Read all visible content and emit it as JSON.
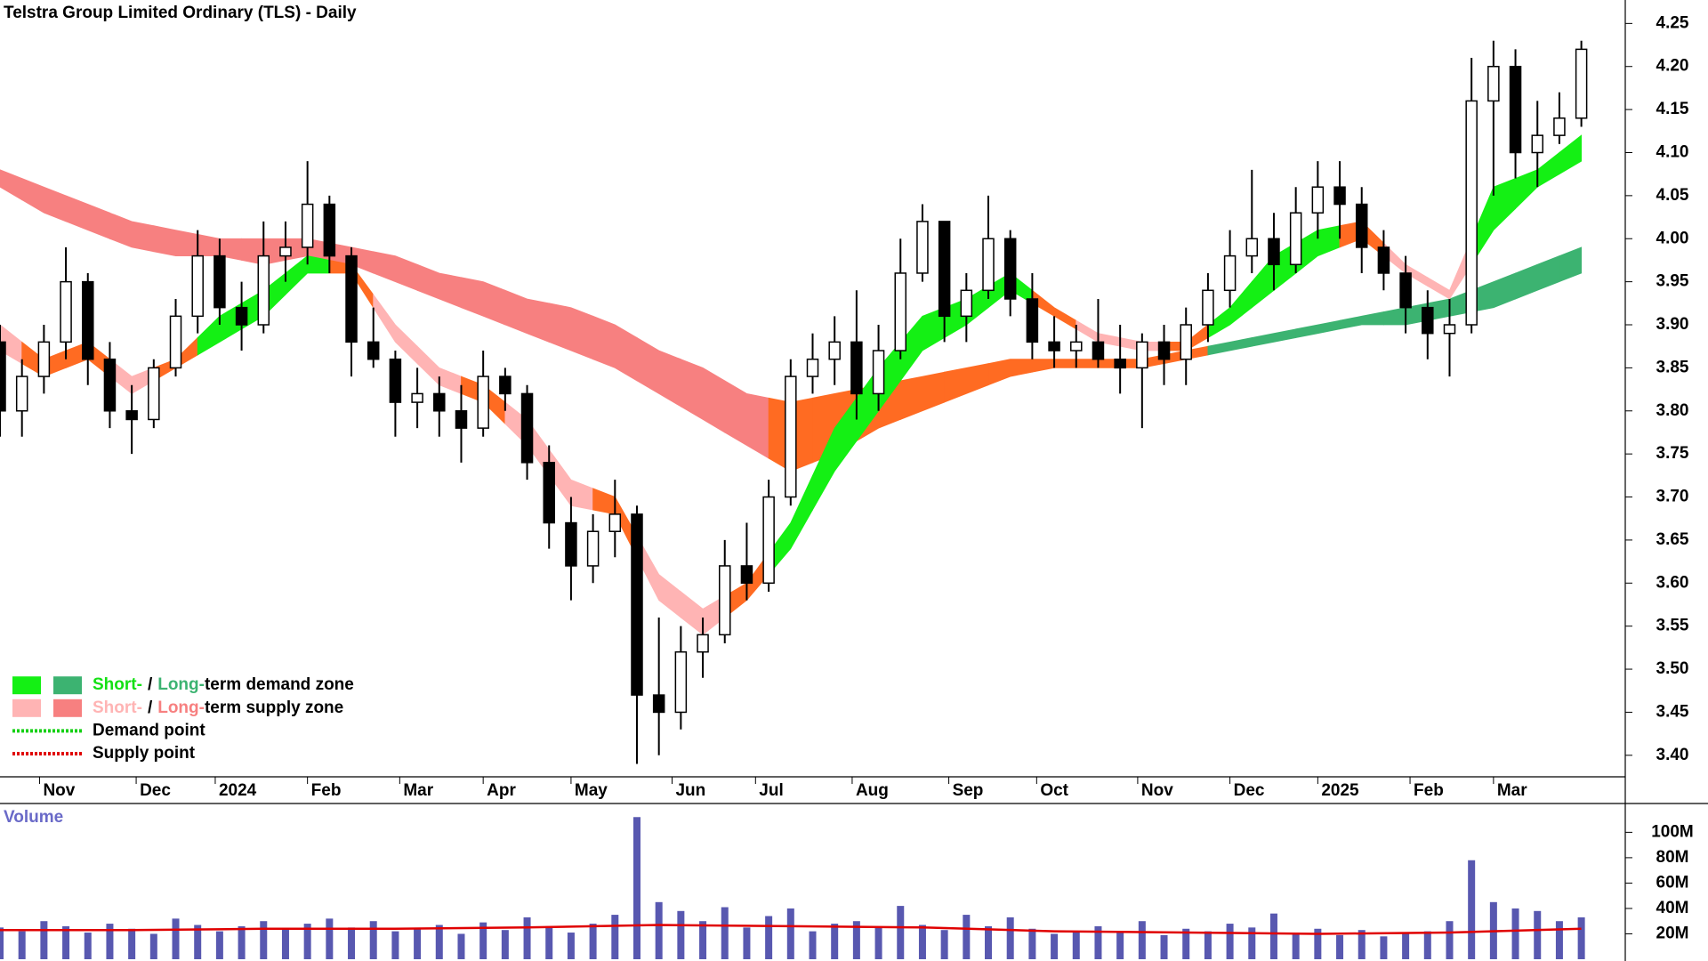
{
  "chart_data": [
    {
      "type": "candlestick",
      "title": "Telstra Group Limited Ordinary (TLS) - Daily",
      "x": [
        0,
        5,
        10,
        15,
        20,
        25,
        30,
        35,
        40,
        45,
        50,
        55,
        60,
        65,
        70,
        75,
        80,
        85,
        90,
        95,
        100,
        105,
        110,
        115,
        120,
        125,
        130,
        135,
        140,
        145,
        150,
        155,
        160,
        165,
        170,
        175,
        180,
        185,
        190,
        195,
        200,
        205,
        210,
        215,
        220,
        225,
        230,
        235,
        240,
        245,
        250,
        255,
        260,
        265,
        270,
        275,
        280,
        285,
        290,
        295,
        300,
        305,
        310,
        315,
        320,
        325,
        330,
        335,
        340,
        345,
        350,
        355,
        360
      ],
      "open": [
        3.88,
        3.8,
        3.84,
        3.88,
        3.95,
        3.86,
        3.8,
        3.79,
        3.85,
        3.91,
        3.98,
        3.92,
        3.9,
        3.98,
        3.99,
        4.04,
        3.98,
        3.88,
        3.86,
        3.81,
        3.82,
        3.8,
        3.78,
        3.84,
        3.82,
        3.74,
        3.67,
        3.62,
        3.66,
        3.68,
        3.47,
        3.45,
        3.52,
        3.54,
        3.62,
        3.6,
        3.7,
        3.84,
        3.86,
        3.88,
        3.82,
        3.87,
        3.96,
        4.02,
        3.91,
        3.94,
        4.0,
        3.93,
        3.88,
        3.87,
        3.88,
        3.86,
        3.85,
        3.88,
        3.86,
        3.9,
        3.94,
        3.98,
        4.0,
        3.97,
        4.03,
        4.06,
        4.04,
        3.99,
        3.96,
        3.92,
        3.89,
        3.9,
        4.16,
        4.2,
        4.1,
        4.12,
        4.14
      ],
      "high": [
        3.9,
        3.86,
        3.9,
        3.99,
        3.96,
        3.88,
        3.83,
        3.86,
        3.93,
        4.01,
        4.0,
        3.95,
        4.02,
        4.02,
        4.09,
        4.05,
        3.99,
        3.92,
        3.87,
        3.85,
        3.84,
        3.83,
        3.87,
        3.85,
        3.83,
        3.76,
        3.7,
        3.68,
        3.72,
        3.69,
        3.56,
        3.55,
        3.56,
        3.65,
        3.67,
        3.72,
        3.86,
        3.89,
        3.91,
        3.94,
        3.9,
        4.0,
        4.04,
        4.02,
        3.96,
        4.05,
        4.01,
        3.96,
        3.91,
        3.9,
        3.93,
        3.9,
        3.89,
        3.9,
        3.92,
        3.96,
        4.01,
        4.08,
        4.03,
        4.06,
        4.09,
        4.09,
        4.06,
        4.01,
        3.98,
        3.94,
        3.93,
        4.21,
        4.23,
        4.22,
        4.16,
        4.17,
        4.23
      ],
      "low": [
        3.77,
        3.77,
        3.82,
        3.86,
        3.83,
        3.78,
        3.75,
        3.78,
        3.84,
        3.89,
        3.9,
        3.87,
        3.89,
        3.95,
        3.97,
        3.96,
        3.84,
        3.85,
        3.77,
        3.78,
        3.77,
        3.74,
        3.77,
        3.8,
        3.72,
        3.64,
        3.58,
        3.6,
        3.63,
        3.39,
        3.4,
        3.43,
        3.49,
        3.53,
        3.58,
        3.59,
        3.69,
        3.82,
        3.83,
        3.79,
        3.8,
        3.86,
        3.95,
        3.88,
        3.88,
        3.93,
        3.91,
        3.86,
        3.85,
        3.85,
        3.85,
        3.82,
        3.78,
        3.83,
        3.83,
        3.88,
        3.92,
        3.96,
        3.94,
        3.96,
        4.0,
        4.0,
        3.96,
        3.94,
        3.89,
        3.86,
        3.84,
        3.89,
        4.05,
        4.07,
        4.06,
        4.11,
        4.13
      ],
      "close": [
        3.8,
        3.84,
        3.88,
        3.95,
        3.86,
        3.8,
        3.79,
        3.85,
        3.91,
        3.98,
        3.92,
        3.9,
        3.98,
        3.99,
        4.04,
        3.98,
        3.88,
        3.86,
        3.81,
        3.82,
        3.8,
        3.78,
        3.84,
        3.82,
        3.74,
        3.67,
        3.62,
        3.66,
        3.68,
        3.47,
        3.45,
        3.52,
        3.54,
        3.62,
        3.6,
        3.7,
        3.84,
        3.86,
        3.88,
        3.82,
        3.87,
        3.96,
        4.02,
        3.91,
        3.94,
        4.0,
        3.93,
        3.88,
        3.87,
        3.88,
        3.86,
        3.85,
        3.88,
        3.86,
        3.9,
        3.94,
        3.98,
        4.0,
        3.97,
        4.03,
        4.06,
        4.04,
        3.99,
        3.96,
        3.92,
        3.89,
        3.9,
        4.16,
        4.2,
        4.1,
        4.12,
        4.14,
        4.22
      ],
      "bands": [
        {
          "x": [
            0,
            10,
            20,
            30,
            40,
            50,
            60,
            70,
            80,
            90,
            100,
            110,
            120,
            130,
            140,
            150,
            160,
            170,
            180,
            190,
            200,
            210,
            220,
            230,
            240,
            250,
            260,
            270,
            280,
            290,
            300,
            310,
            320,
            330,
            340,
            350,
            360
          ],
          "upper": [
            4.08,
            4.06,
            4.04,
            4.02,
            4.01,
            4.0,
            4.0,
            4.0,
            3.99,
            3.98,
            3.96,
            3.95,
            3.93,
            3.92,
            3.9,
            3.87,
            3.85,
            3.82,
            3.81,
            3.82,
            3.83,
            3.84,
            3.85,
            3.86,
            3.86,
            3.86,
            3.86,
            3.87,
            3.88,
            3.89,
            3.9,
            3.91,
            3.92,
            3.93,
            3.95,
            3.97,
            3.99
          ],
          "lower": [
            4.06,
            4.03,
            4.01,
            3.99,
            3.98,
            3.98,
            3.97,
            3.98,
            3.97,
            3.95,
            3.93,
            3.91,
            3.89,
            3.87,
            3.85,
            3.82,
            3.79,
            3.76,
            3.73,
            3.75,
            3.78,
            3.8,
            3.82,
            3.84,
            3.85,
            3.85,
            3.85,
            3.86,
            3.87,
            3.88,
            3.89,
            3.9,
            3.9,
            3.91,
            3.92,
            3.94,
            3.96
          ],
          "colors": [
            "#f78080",
            "#f78080",
            "#f78080",
            "#f78080",
            "#f78080",
            "#f78080",
            "#f78080",
            "#f78080",
            "#f78080",
            "#f78080",
            "#f78080",
            "#f78080",
            "#f78080",
            "#f78080",
            "#f78080",
            "#f78080",
            "#f78080",
            "#f78080",
            "#ff6b22",
            "#ff6b22",
            "#ff6b22",
            "#ff6b22",
            "#ff6b22",
            "#ff6b22",
            "#ff6b22",
            "#ff6b22",
            "#ff6b22",
            "#ff6b22",
            "#3cb371",
            "#3cb371",
            "#3cb371",
            "#3cb371",
            "#3cb371",
            "#3cb371",
            "#3cb371",
            "#3cb371",
            "#3cb371"
          ]
        },
        {
          "x": [
            0,
            10,
            20,
            30,
            40,
            50,
            60,
            70,
            80,
            90,
            100,
            110,
            120,
            130,
            140,
            150,
            160,
            170,
            180,
            190,
            200,
            210,
            220,
            230,
            240,
            250,
            260,
            270,
            280,
            290,
            300,
            310,
            320,
            330,
            340,
            350,
            360
          ],
          "upper": [
            3.9,
            3.86,
            3.88,
            3.84,
            3.86,
            3.91,
            3.94,
            3.98,
            3.97,
            3.9,
            3.85,
            3.83,
            3.79,
            3.72,
            3.7,
            3.61,
            3.57,
            3.6,
            3.67,
            3.78,
            3.85,
            3.91,
            3.93,
            3.96,
            3.92,
            3.89,
            3.88,
            3.88,
            3.92,
            3.98,
            4.01,
            4.02,
            3.97,
            3.94,
            4.06,
            4.08,
            4.12
          ],
          "lower": [
            3.87,
            3.84,
            3.86,
            3.82,
            3.85,
            3.88,
            3.91,
            3.96,
            3.96,
            3.88,
            3.83,
            3.81,
            3.76,
            3.69,
            3.68,
            3.58,
            3.54,
            3.58,
            3.64,
            3.73,
            3.8,
            3.87,
            3.9,
            3.94,
            3.91,
            3.88,
            3.87,
            3.87,
            3.9,
            3.94,
            3.98,
            4.0,
            3.96,
            3.93,
            4.01,
            4.06,
            4.09
          ],
          "colors": [
            "#ffb4b4",
            "#ff6b22",
            "#ff6b22",
            "#ffb4b4",
            "#ff6b22",
            "#14f014",
            "#14f014",
            "#14f014",
            "#ff6b22",
            "#ffb4b4",
            "#ffb4b4",
            "#ff6b22",
            "#ffb4b4",
            "#ffb4b4",
            "#ff6b22",
            "#ffb4b4",
            "#ffb4b4",
            "#ff6b22",
            "#14f014",
            "#14f014",
            "#14f014",
            "#14f014",
            "#14f014",
            "#14f014",
            "#ff6b22",
            "#ffb4b4",
            "#ffb4b4",
            "#ff6b22",
            "#14f014",
            "#14f014",
            "#14f014",
            "#ff6b22",
            "#ffb4b4",
            "#ffb4b4",
            "#14f014",
            "#14f014",
            "#14f014"
          ]
        }
      ],
      "xlim": [
        0,
        370
      ],
      "xticks": [
        {
          "value": 9,
          "label": "Nov"
        },
        {
          "value": 31,
          "label": "Dec"
        },
        {
          "value": 49,
          "label": "2024"
        },
        {
          "value": 70,
          "label": "Feb"
        },
        {
          "value": 91,
          "label": "Mar"
        },
        {
          "value": 110,
          "label": "Apr"
        },
        {
          "value": 130,
          "label": "May"
        },
        {
          "value": 153,
          "label": "Jun"
        },
        {
          "value": 172,
          "label": "Jul"
        },
        {
          "value": 194,
          "label": "Aug"
        },
        {
          "value": 216,
          "label": "Sep"
        },
        {
          "value": 236,
          "label": "Oct"
        },
        {
          "value": 259,
          "label": "Nov"
        },
        {
          "value": 280,
          "label": "Dec"
        },
        {
          "value": 300,
          "label": "2025"
        },
        {
          "value": 321,
          "label": "Feb"
        },
        {
          "value": 340,
          "label": "Mar"
        }
      ],
      "ylim": [
        3.375,
        4.27
      ],
      "yticks": [
        {
          "value": 3.4,
          "label": "3.40"
        },
        3.45,
        {
          "value": 3.5,
          "label": "3.50"
        },
        3.55,
        {
          "value": 3.6,
          "label": "3.60"
        },
        3.65,
        {
          "value": 3.7,
          "label": "3.70"
        },
        3.75,
        {
          "value": 3.8,
          "label": "3.80"
        },
        3.85,
        {
          "value": 3.9,
          "label": "3.90"
        },
        3.95,
        {
          "value": 4,
          "label": "4.00"
        },
        4.05,
        {
          "value": 4.1,
          "label": "4.10"
        },
        4.15,
        {
          "value": 4.2,
          "label": "4.20"
        },
        4.25
      ],
      "legend_corner": "bottom-left",
      "legend": [
        {
          "parts": [
            "Short-",
            "/",
            "Long-",
            "term demand zone"
          ],
          "part_colors": [
            "#14e014",
            "#000000",
            "#3cb371",
            "#000000"
          ],
          "swatches": [
            "#14f014",
            "#3cb371"
          ]
        },
        {
          "parts": [
            "Short-",
            "/",
            "Long-",
            "term supply zone"
          ],
          "part_colors": [
            "#ffb4b4",
            "#000000",
            "#f78080",
            "#000000"
          ],
          "swatches": [
            "#ffb4b4",
            "#f78080"
          ]
        },
        {
          "parts": [
            "Demand point"
          ],
          "line_color": "#14d014"
        },
        {
          "parts": [
            "Supply point"
          ],
          "line_color": "#e00000"
        }
      ]
    },
    {
      "type": "bar",
      "title": "Volume",
      "x": [
        0,
        5,
        10,
        15,
        20,
        25,
        30,
        35,
        40,
        45,
        50,
        55,
        60,
        65,
        70,
        75,
        80,
        85,
        90,
        95,
        100,
        105,
        110,
        115,
        120,
        125,
        130,
        135,
        140,
        145,
        150,
        155,
        160,
        165,
        170,
        175,
        180,
        185,
        190,
        195,
        200,
        205,
        210,
        215,
        220,
        225,
        230,
        235,
        240,
        245,
        250,
        255,
        260,
        265,
        270,
        275,
        280,
        285,
        290,
        295,
        300,
        305,
        310,
        315,
        320,
        325,
        330,
        335,
        340,
        345,
        350,
        355,
        360
      ],
      "values": [
        25000000,
        22000000,
        30000000,
        26000000,
        21000000,
        28000000,
        24000000,
        20000000,
        32000000,
        27000000,
        22000000,
        26000000,
        30000000,
        24000000,
        28000000,
        32000000,
        25000000,
        30000000,
        22000000,
        24000000,
        27000000,
        20000000,
        29000000,
        23000000,
        33000000,
        26000000,
        21000000,
        28000000,
        35000000,
        112000000,
        45000000,
        38000000,
        30000000,
        41000000,
        25000000,
        34000000,
        40000000,
        22000000,
        28000000,
        30000000,
        25000000,
        42000000,
        27000000,
        23000000,
        35000000,
        26000000,
        33000000,
        24000000,
        20000000,
        22000000,
        26000000,
        21000000,
        30000000,
        19000000,
        24000000,
        22000000,
        28000000,
        25000000,
        36000000,
        21000000,
        24000000,
        19000000,
        23000000,
        18000000,
        20000000,
        22000000,
        30000000,
        78000000,
        45000000,
        40000000,
        38000000,
        30000000,
        33000000
      ],
      "color": "#5858b0",
      "average": {
        "x": [
          0,
          30,
          60,
          90,
          120,
          150,
          180,
          210,
          240,
          270,
          300,
          330,
          360
        ],
        "values": [
          23000000,
          23000000,
          24000000,
          24000000,
          25000000,
          27000000,
          26000000,
          25000000,
          22000000,
          21000000,
          20000000,
          21000000,
          24000000
        ],
        "color": "#e00000"
      },
      "xlim": [
        0,
        370
      ],
      "ylim": [
        0,
        122000000
      ],
      "yticks": [
        {
          "value": 20000000,
          "label": "20M"
        },
        {
          "value": 40000000,
          "label": "40M"
        },
        {
          "value": 60000000,
          "label": "60M"
        },
        {
          "value": 80000000,
          "label": "80M"
        },
        {
          "value": 100000000,
          "label": "100M"
        }
      ]
    }
  ]
}
